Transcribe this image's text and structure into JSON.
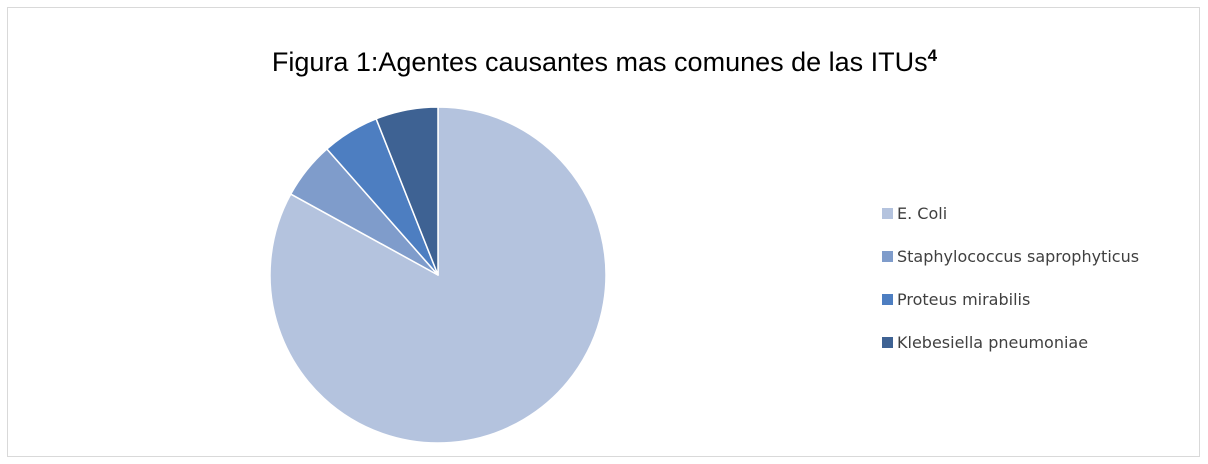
{
  "chart_data": {
    "type": "pie",
    "title": "Figura 1:Agentes causantes mas comunes de las ITUs",
    "title_superscript": "4",
    "categories": [
      "E. Coli",
      "Staphylococcus saprophyticus",
      "Proteus mirabilis",
      "Klebesiella pneumoniae"
    ],
    "values": [
      83,
      5.5,
      5.5,
      6
    ],
    "colors": [
      "#b4c3de",
      "#7f9ccb",
      "#4d7ec1",
      "#3e6293"
    ],
    "legend_position": "right",
    "start_angle_deg": 0,
    "direction": "clockwise"
  }
}
